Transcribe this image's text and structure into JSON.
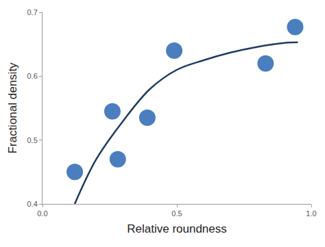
{
  "chart_data": {
    "type": "line",
    "x_label": "Relative roundness",
    "y_label": "Fractional density",
    "xlim": [
      0,
      1
    ],
    "xticks": [
      {
        "value": 0,
        "label": "0.0"
      },
      0.5,
      {
        "value": 1,
        "label": "1.0"
      }
    ],
    "ylim": [
      0.4,
      0.7
    ],
    "yticks": [
      0.4,
      0.5,
      0.6,
      0.7
    ],
    "grid": false,
    "series": [
      {
        "type": "line",
        "color": "#1f3a5f",
        "line_style": "solid",
        "x": [
          0.12,
          0.2,
          0.3,
          0.4,
          0.5,
          0.6,
          0.7,
          0.8,
          0.9,
          0.95
        ],
        "values": [
          0.4,
          0.47,
          0.53,
          0.58,
          0.61,
          0.625,
          0.637,
          0.646,
          0.652,
          0.653
        ]
      },
      {
        "type": "scatter",
        "color": "#4a7ebf",
        "marker": "circle",
        "x": [
          0.12,
          0.26,
          0.28,
          0.39,
          0.49,
          0.83,
          0.94
        ],
        "values": [
          0.45,
          0.545,
          0.47,
          0.535,
          0.64,
          0.62,
          0.677
        ]
      }
    ]
  }
}
